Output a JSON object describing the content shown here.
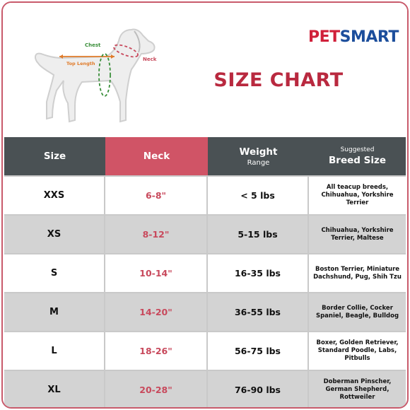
{
  "brand": {
    "part1": "PET",
    "part2": "SMART"
  },
  "title": "SIZE CHART",
  "diagram": {
    "chest": "Chest",
    "neck": "Neck",
    "top_length": "Top Length"
  },
  "header": {
    "size": "Size",
    "neck": "Neck",
    "weight": "Weight",
    "weight_sub": "Range",
    "breed_top": "Suggested",
    "breed": "Breed Size"
  },
  "rows": [
    {
      "size": "XXS",
      "neck": "6-8\"",
      "weight": "< 5 lbs",
      "breed": "All teacup breeds, Chihuahua, Yorkshire Terrier"
    },
    {
      "size": "XS",
      "neck": "8-12\"",
      "weight": "5-15 lbs",
      "breed": "Chihuahua, Yorkshire Terrier, Maltese"
    },
    {
      "size": "S",
      "neck": "10-14\"",
      "weight": "16-35 lbs",
      "breed": "Boston Terrier, Miniature Dachshund, Pug, Shih Tzu"
    },
    {
      "size": "M",
      "neck": "14-20\"",
      "weight": "36-55 lbs",
      "breed": "Border Collie, Cocker Spaniel, Beagle, Bulldog"
    },
    {
      "size": "L",
      "neck": "18-26\"",
      "weight": "56-75 lbs",
      "breed": "Boxer, Golden Retriever, Standard Poodle, Labs, Pitbulls"
    },
    {
      "size": "XL",
      "neck": "20-28\"",
      "weight": "76-90 lbs",
      "breed": "Doberman Pinscher, German Shepherd, Rottweiler"
    }
  ],
  "colors": {
    "header_dark": "#4a5154",
    "header_neck": "#d05466",
    "title": "#b9293f",
    "neck_text": "#c8495c",
    "chest_guide": "#3a8f3a",
    "neck_guide": "#c8495c",
    "length_guide": "#e07b2a"
  }
}
